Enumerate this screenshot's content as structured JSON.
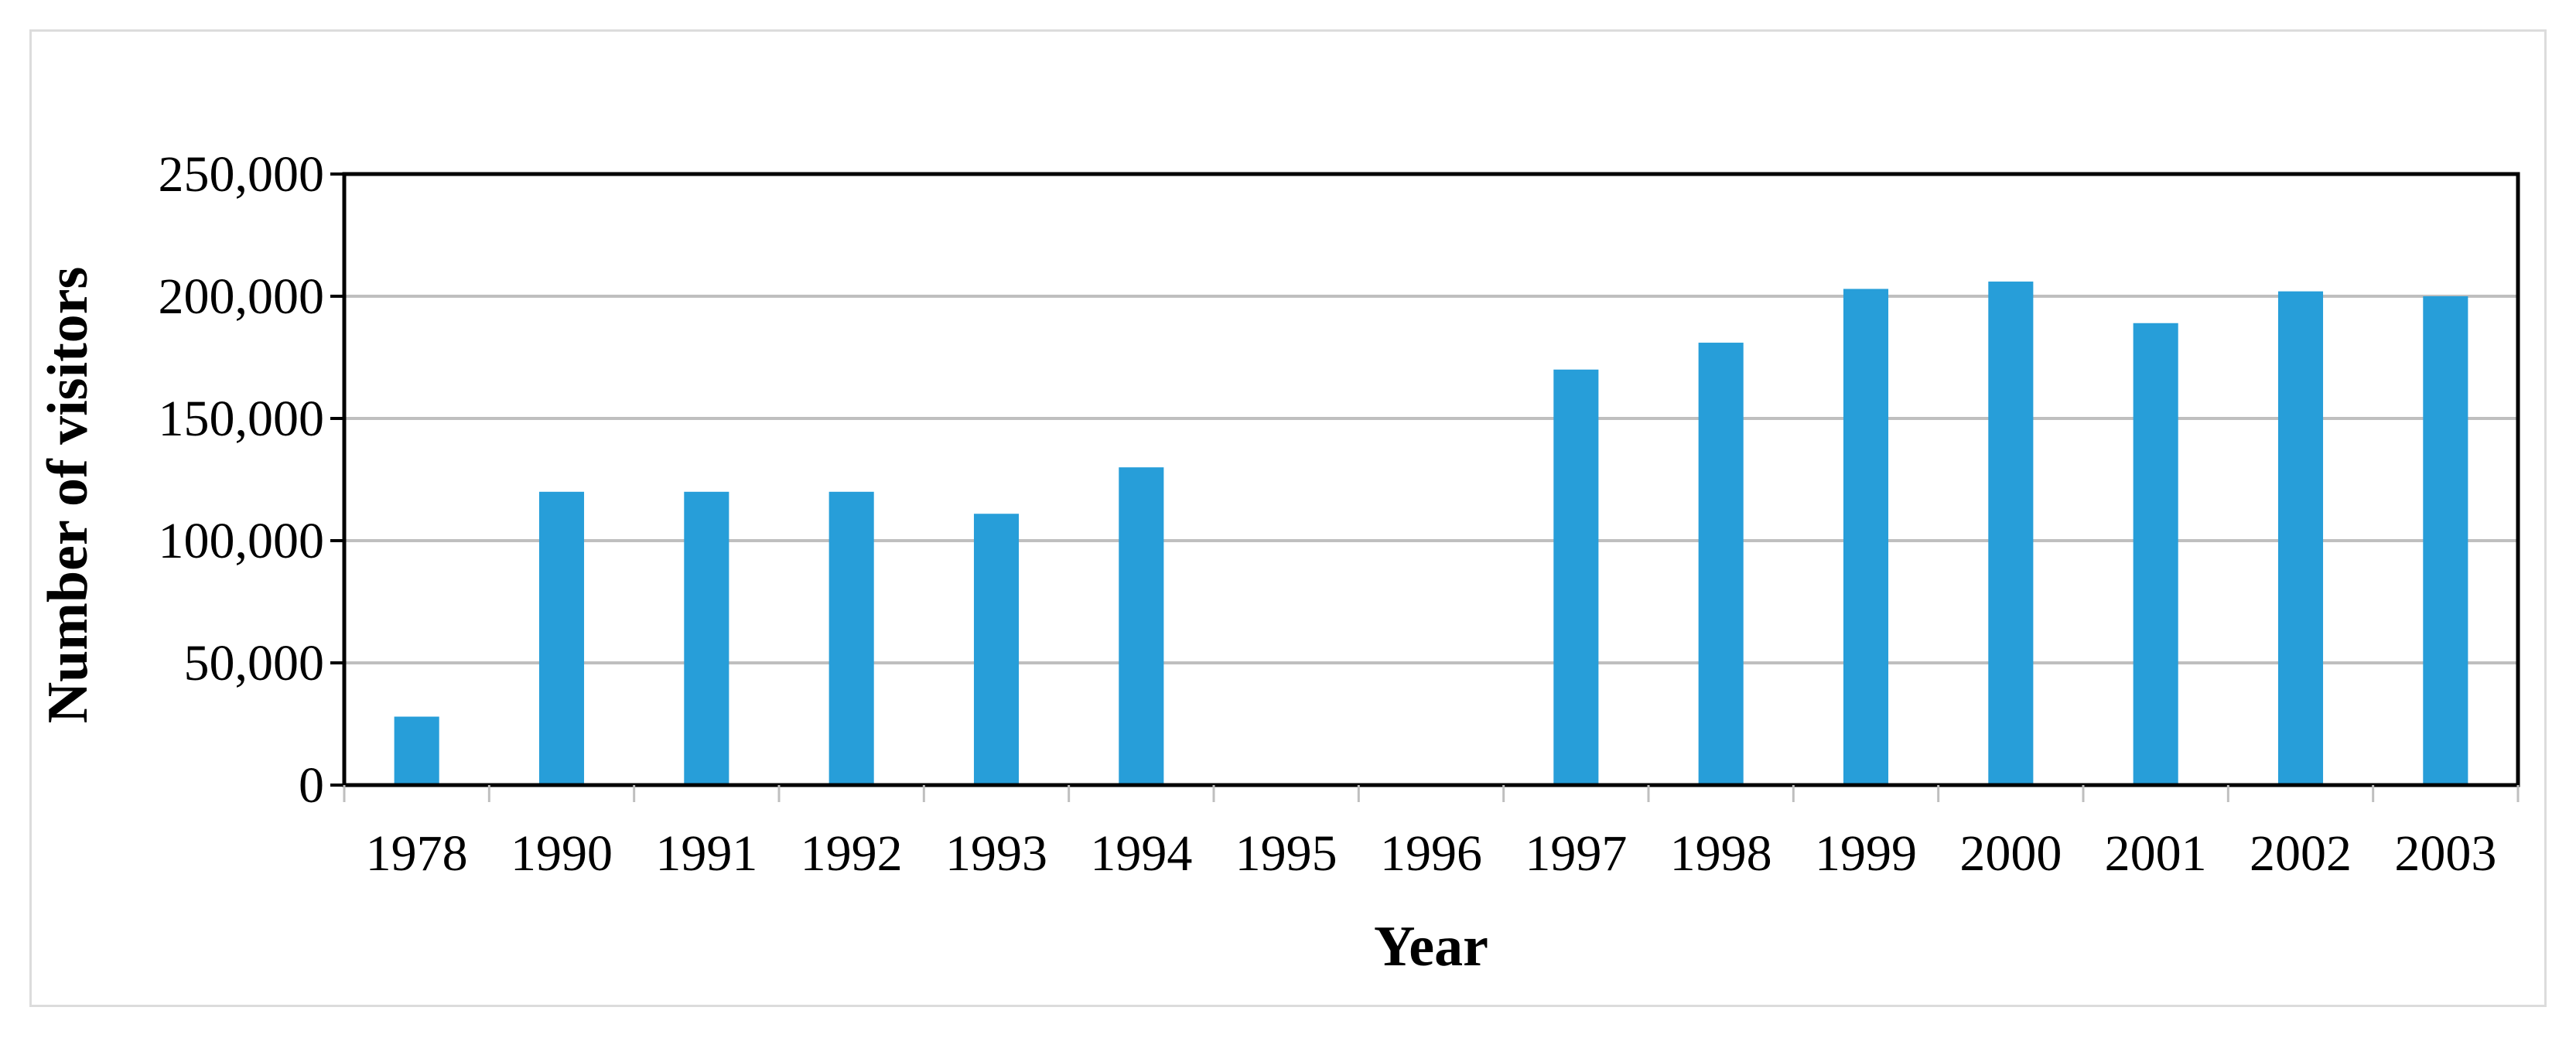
{
  "chart_data": {
    "type": "bar",
    "title": "",
    "xlabel": "Year",
    "ylabel": "Number of visitors",
    "categories": [
      "1978",
      "1990",
      "1991",
      "1992",
      "1993",
      "1994",
      "1995",
      "1996",
      "1997",
      "1998",
      "1999",
      "2000",
      "2001",
      "2002",
      "2003"
    ],
    "values": [
      28000,
      120000,
      120000,
      120000,
      111000,
      130000,
      0,
      0,
      170000,
      181000,
      203000,
      206000,
      189000,
      202000,
      200000
    ],
    "ylim": [
      0,
      250000
    ],
    "yticks": [
      0,
      50000,
      100000,
      150000,
      200000,
      250000
    ],
    "ytick_labels": [
      "0",
      "50,000",
      "100,000",
      "150,000",
      "200,000",
      "250,000"
    ],
    "grid": "horizontal",
    "legend": "none",
    "bar_color": "#279ed9",
    "gridline_color": "#bfbfbf",
    "frame_color": "#dcdcdc"
  }
}
